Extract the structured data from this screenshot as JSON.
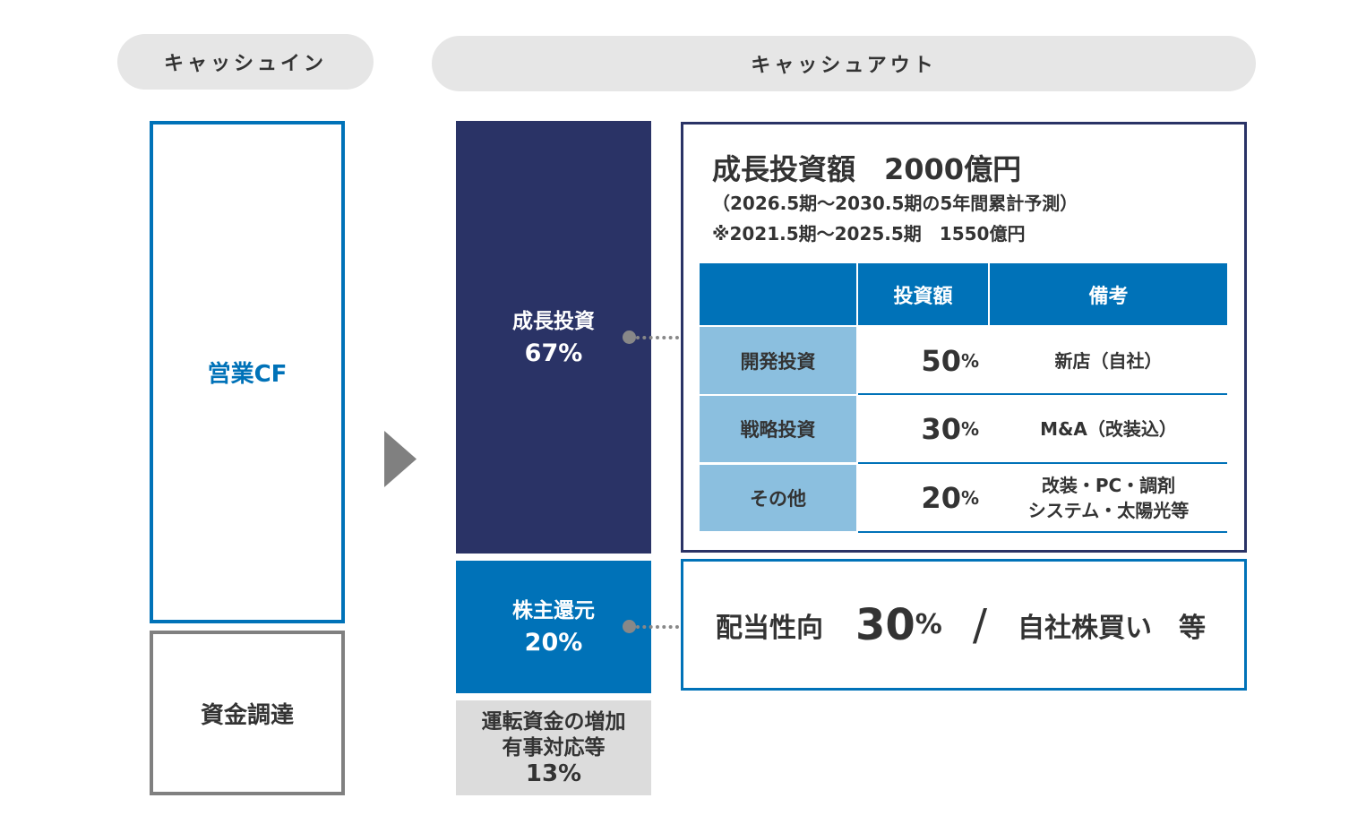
{
  "header": {
    "cash_in": "キャッシュイン",
    "cash_out": "キャッシュアウト"
  },
  "cash_in": {
    "operating_cf": "営業CF",
    "financing": "資金調達"
  },
  "cash_out": {
    "growth": {
      "label": "成長投資",
      "percent": "67%"
    },
    "shareholder": {
      "label": "株主還元",
      "percent": "20%"
    },
    "working": {
      "line1": "運転資金の増加",
      "line2": "有事対応等",
      "percent": "13%"
    }
  },
  "growth_box": {
    "title": "成長投資額　2000億円",
    "period": "（2026.5期～2030.5期の5年間累計予測）",
    "previous": "※2021.5期～2025.5期　1550億円",
    "table": {
      "headers": [
        "",
        "投資額",
        "備考"
      ],
      "rows": [
        {
          "category": "開発投資",
          "value": "50",
          "unit": "%",
          "note1": "新店（自社）",
          "note2": ""
        },
        {
          "category": "戦略投資",
          "value": "30",
          "unit": "%",
          "note1": "M&A（改装込）",
          "note2": ""
        },
        {
          "category": "その他",
          "value": "20",
          "unit": "%",
          "note1": "改装・PC・調剤",
          "note2": "システム・太陽光等"
        }
      ]
    }
  },
  "shareholder_box": {
    "payout_label": "配当性向",
    "payout_value": "30",
    "unit": "%",
    "slash": "/",
    "buyback": "自社株買い　等"
  },
  "colors": {
    "navy": "#2a3366",
    "blue": "#0072b8",
    "light_blue": "#8bbfdf",
    "gray": "#808080",
    "light_gray": "#dcdcdc"
  }
}
